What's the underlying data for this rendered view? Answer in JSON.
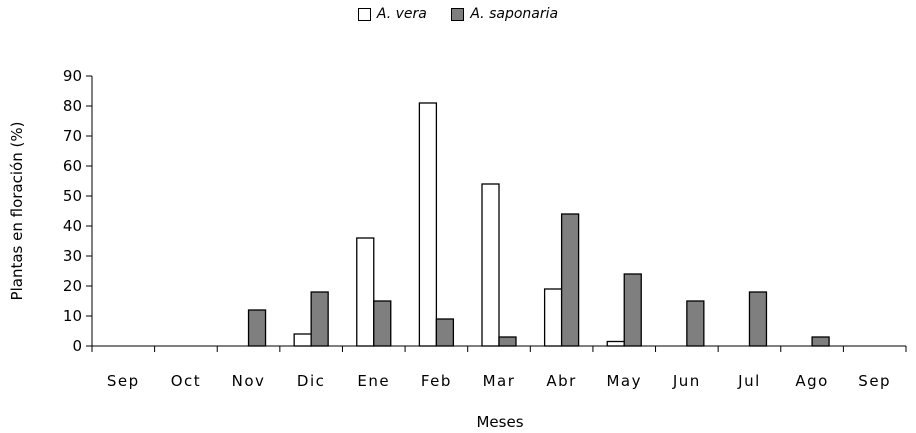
{
  "chart_data": {
    "type": "bar",
    "title": "",
    "xlabel": "Meses",
    "ylabel": "Plantas en floración (%)",
    "ylim": [
      0,
      90
    ],
    "yticks": [
      0,
      10,
      20,
      30,
      40,
      50,
      60,
      70,
      80,
      90
    ],
    "categories": [
      "Sep",
      "Oct",
      "Nov",
      "Dic",
      "Ene",
      "Feb",
      "Mar",
      "Abr",
      "May",
      "Jun",
      "Jul",
      "Ago",
      "Sep"
    ],
    "series": [
      {
        "name": "A. vera",
        "color": "#ffffff",
        "values": [
          0,
          0,
          0,
          4,
          36,
          81,
          54,
          19,
          1.5,
          0,
          0,
          0,
          0
        ]
      },
      {
        "name": "A. saponaria",
        "color": "#7f7f7f",
        "values": [
          0,
          0,
          12,
          18,
          15,
          9,
          3,
          44,
          24,
          15,
          18,
          3,
          0
        ]
      }
    ],
    "legend_position": "top-center",
    "grid": false
  }
}
